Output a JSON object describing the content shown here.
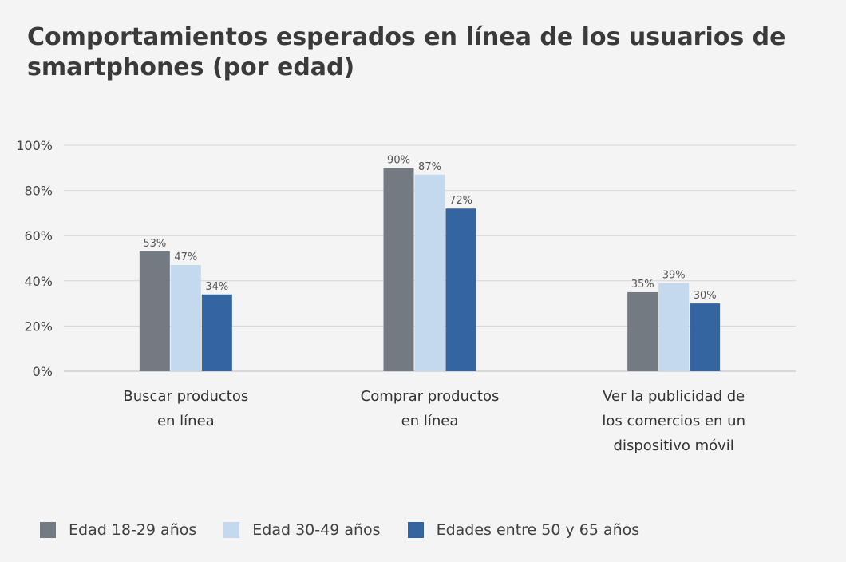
{
  "chart_data": {
    "type": "bar",
    "title": "Comportamientos esperados en línea de los usuarios de smartphones (por edad)",
    "categories": [
      [
        "Buscar productos",
        "en línea"
      ],
      [
        "Comprar productos",
        "en línea"
      ],
      [
        "Ver la publicidad de",
        "los comercios en un",
        "dispositivo móvil"
      ]
    ],
    "series": [
      {
        "name": "Edad 18-29 años",
        "color": "#737a82",
        "values": [
          53,
          90,
          35
        ]
      },
      {
        "name": "Edad 30-49 años",
        "color": "#c5d9ee",
        "values": [
          47,
          87,
          39
        ]
      },
      {
        "name": "Edades entre 50 y 65 años",
        "color": "#3465a0",
        "values": [
          34,
          72,
          30
        ]
      }
    ],
    "data_labels": [
      [
        "53%",
        "90%",
        "35%"
      ],
      [
        "47%",
        "87%",
        "39%"
      ],
      [
        "34%",
        "72%",
        "30%"
      ]
    ],
    "yticks": [
      {
        "value": 0,
        "label": "0%"
      },
      {
        "value": 20,
        "label": "20%"
      },
      {
        "value": 40,
        "label": "40%"
      },
      {
        "value": 60,
        "label": "60%"
      },
      {
        "value": 80,
        "label": "80%"
      },
      {
        "value": 100,
        "label": "100%"
      }
    ],
    "ylim": [
      0,
      100
    ],
    "xlabel": "",
    "ylabel": "",
    "grid": true,
    "legend_position": "bottom-left"
  }
}
